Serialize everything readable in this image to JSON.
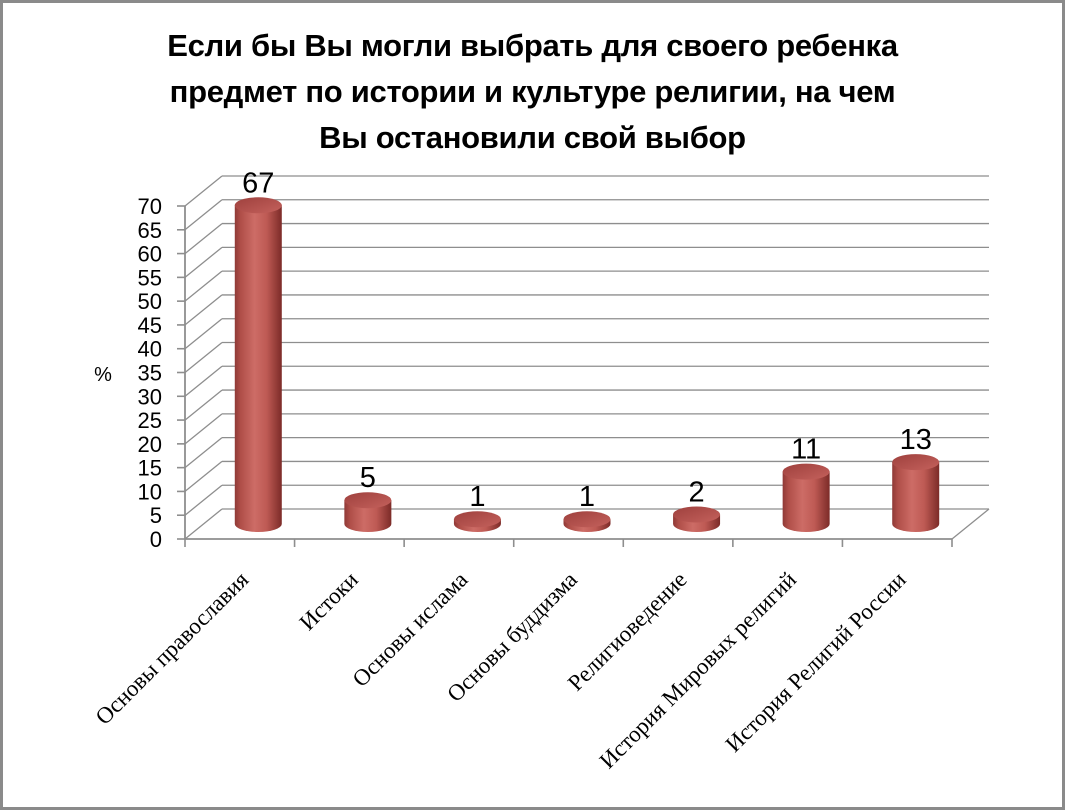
{
  "window": {
    "background": "#ffffff",
    "border_color": "#8a8a8a"
  },
  "title": {
    "text": "Если бы Вы могли выбрать для своего ребенка предмет по истории и культуре религии, на чем Вы остановили свой выбор",
    "lines": [
      "Если бы Вы могли выбрать для своего ребенка",
      "предмет по истории и культуре религии, на чем",
      "Вы остановили свой выбор"
    ]
  },
  "chart_data": {
    "type": "bar",
    "subtype": "3d-cylinder",
    "title": "Если бы Вы могли выбрать для своего ребенка предмет по истории и культуре религии, на чем Вы остановили свой выбор",
    "categories": [
      "Основы православия",
      "Истоки",
      "Основы ислама",
      "Основы буддизма",
      "Религиоведение",
      "История Мировых религий",
      "История Религий России"
    ],
    "values": [
      67,
      5,
      1,
      1,
      2,
      11,
      13
    ],
    "data_labels": [
      "67",
      "5",
      "1",
      "1",
      "2",
      "11",
      "13"
    ],
    "xlabel": "",
    "ylabel": "%",
    "ylim": [
      0,
      70
    ],
    "ytick_step": 5,
    "yticks": [
      0,
      5,
      10,
      15,
      20,
      25,
      30,
      35,
      40,
      45,
      50,
      55,
      60,
      65,
      70
    ],
    "grid": true,
    "legend": false,
    "colors": {
      "bar": "#c0504d",
      "bar_edge_dark": "#7c2b28",
      "bar_highlight": "#cd6c66",
      "bar_top": "#b04e4b",
      "grid": "#8e8e8e",
      "text": "#000000"
    }
  }
}
